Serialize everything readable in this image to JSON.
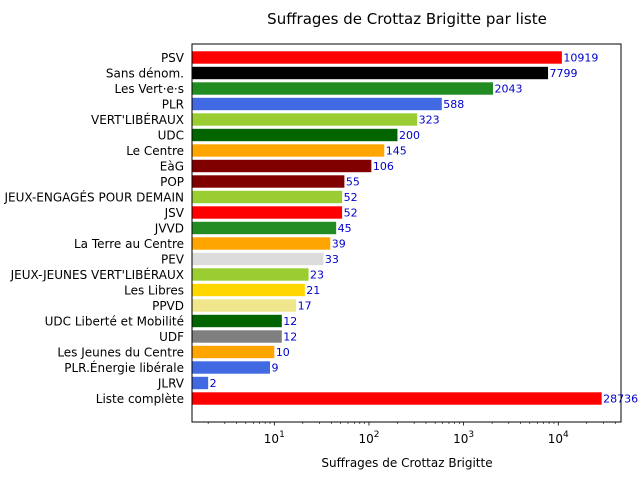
{
  "chart_data": {
    "type": "bar",
    "orientation": "horizontal",
    "title": "Suffrages de Crottaz Brigitte par liste",
    "xlabel": "Suffrages de Crottaz Brigitte",
    "ylabel": "",
    "xscale": "log",
    "xlim": [
      1.35,
      46000
    ],
    "x_ticks": [
      {
        "base": "10",
        "exp": "1",
        "value": 10
      },
      {
        "base": "10",
        "exp": "2",
        "value": 100
      },
      {
        "base": "10",
        "exp": "3",
        "value": 1000
      },
      {
        "base": "10",
        "exp": "4",
        "value": 10000
      }
    ],
    "grid": false,
    "categories": [
      "PSV",
      "Sans dénom.",
      "Les Vert·e·s",
      "PLR",
      "VERT'LIBÉRAUX",
      "UDC",
      "Le Centre",
      "EàG",
      "POP",
      "JEUX-ENGAGÉS POUR DEMAIN",
      "JSV",
      "JVVD",
      "La Terre au Centre",
      "PEV",
      "JEUX-JEUNES VERT'LIBÉRAUX",
      "Les Libres",
      "PPVD",
      "UDC Liberté et Mobilité",
      "UDF",
      "Les Jeunes du Centre",
      "PLR.Énergie libérale",
      "JLRV",
      "Liste complète"
    ],
    "values": [
      10919,
      7799,
      2043,
      588,
      323,
      200,
      145,
      106,
      55,
      52,
      52,
      45,
      39,
      33,
      23,
      21,
      17,
      12,
      12,
      10,
      9,
      2,
      28736
    ],
    "value_labels": [
      "10919",
      "7799",
      "2043",
      "588",
      "323",
      "200",
      "145",
      "106",
      "55",
      "52",
      "52",
      "45",
      "39",
      "33",
      "23",
      "21",
      "17",
      "12",
      "12",
      "10",
      "9",
      "2",
      "28736"
    ],
    "colors": [
      "#ff0000",
      "#000000",
      "#228b22",
      "#4169e1",
      "#9acd32",
      "#006400",
      "#ffa500",
      "#800000",
      "#800000",
      "#9acd32",
      "#ff0000",
      "#228b22",
      "#ffa500",
      "#dcdcdc",
      "#9acd32",
      "#ffd700",
      "#f0e68c",
      "#006400",
      "#808080",
      "#ffa500",
      "#4169e1",
      "#4169e1",
      "#ff0000"
    ],
    "label_color": "#0000cc"
  }
}
